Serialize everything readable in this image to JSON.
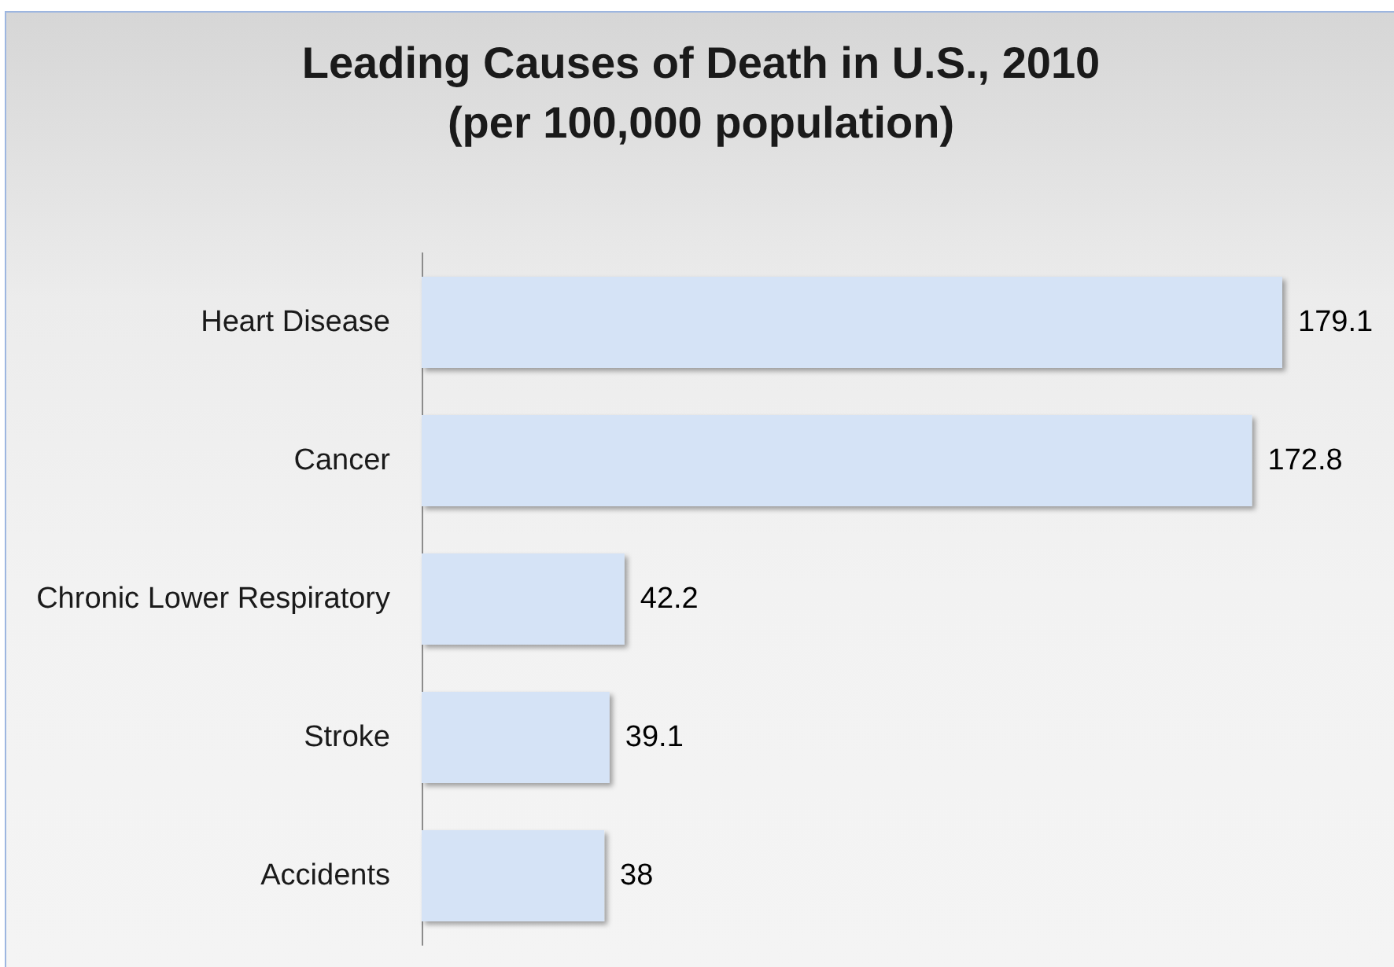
{
  "chart_data": {
    "type": "bar",
    "title": "Leading Causes of Death in U.S., 2010\n(per 100,000 population)",
    "orientation": "horizontal",
    "categories": [
      "Heart Disease",
      "Cancer",
      "Chronic Lower Respiratory",
      "Stroke",
      "Accidents"
    ],
    "values": [
      179.1,
      172.8,
      42.2,
      39.1,
      38
    ],
    "color": "#d5e3f6",
    "data_labels": true
  }
}
